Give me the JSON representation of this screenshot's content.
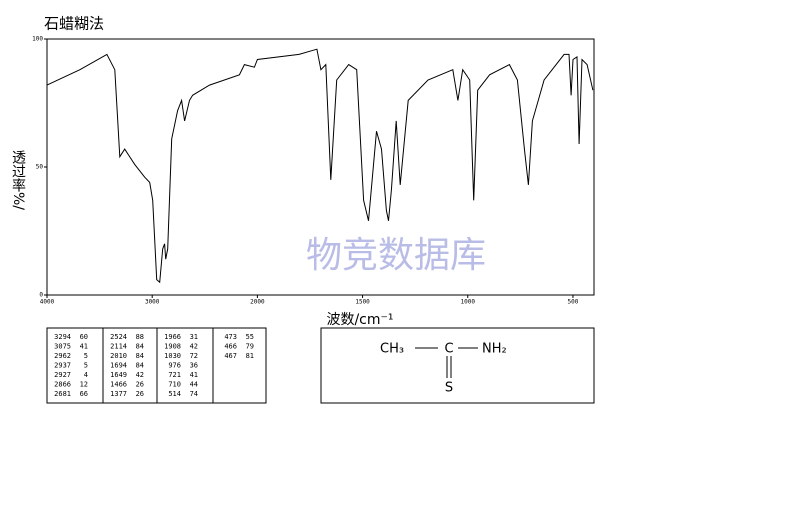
{
  "chart_data": {
    "type": "line",
    "title": "石蜡糊法",
    "x_label": "波数/cm⁻¹",
    "y_label": "透过率%/",
    "color": "#000000",
    "xlim": [
      4000,
      400
    ],
    "ylim": [
      0,
      100
    ],
    "xticks": [
      4000,
      3000,
      2000,
      1500,
      1000,
      500
    ],
    "yticks": [
      0,
      50,
      100
    ],
    "x": [
      4000,
      3687,
      3431,
      3355,
      3308,
      3261,
      3166,
      3071,
      3024,
      2995,
      2957,
      2929,
      2900,
      2882,
      2872,
      2853,
      2815,
      2758,
      2720,
      2692,
      2645,
      2616,
      2455,
      2171,
      2123,
      2028,
      2000,
      1802,
      1717,
      1698,
      1675,
      1651,
      1623,
      1566,
      1528,
      1495,
      1472,
      1434,
      1410,
      1387,
      1377,
      1363,
      1340,
      1321,
      1283,
      1189,
      1071,
      1047,
      1024,
      991,
      972,
      953,
      896,
      802,
      764,
      731,
      712,
      693,
      637,
      542,
      519,
      509,
      500,
      481,
      471,
      457,
      433,
      405
    ],
    "values": [
      82,
      88,
      94,
      88,
      54,
      57,
      51,
      46,
      44,
      37,
      6,
      5,
      18,
      20,
      14,
      18,
      61,
      72,
      76,
      68,
      76,
      78,
      82,
      86,
      90,
      89,
      92,
      94,
      96,
      88,
      90,
      45,
      84,
      90,
      88,
      37,
      29,
      64,
      57,
      33,
      29,
      41,
      68,
      43,
      76,
      84,
      88,
      76,
      88,
      84,
      37,
      80,
      86,
      90,
      84,
      57,
      43,
      68,
      84,
      94,
      94,
      78,
      92,
      93,
      59,
      92,
      90,
      80
    ]
  },
  "watermark": "物竞数据库",
  "table": {
    "rows": [
      [
        "3294",
        "60",
        "2524",
        "88",
        "1966",
        "31",
        "473",
        "55"
      ],
      [
        "3075",
        "41",
        "2114",
        "84",
        "1908",
        "42",
        "466",
        "79"
      ],
      [
        "2962",
        "5",
        "2010",
        "84",
        "1030",
        "72",
        "467",
        "81"
      ],
      [
        "2937",
        "5",
        "1694",
        "84",
        "976",
        "36"
      ],
      [
        "2927",
        "4",
        "1649",
        "42",
        "721",
        "41"
      ],
      [
        "2866",
        "12",
        "1466",
        "26",
        "710",
        "44"
      ],
      [
        "2681",
        "66",
        "1377",
        "26",
        "514",
        "74"
      ]
    ]
  },
  "structure": {
    "left": "CH₃",
    "center": "C",
    "right": "NH₂",
    "bottom": "S"
  }
}
